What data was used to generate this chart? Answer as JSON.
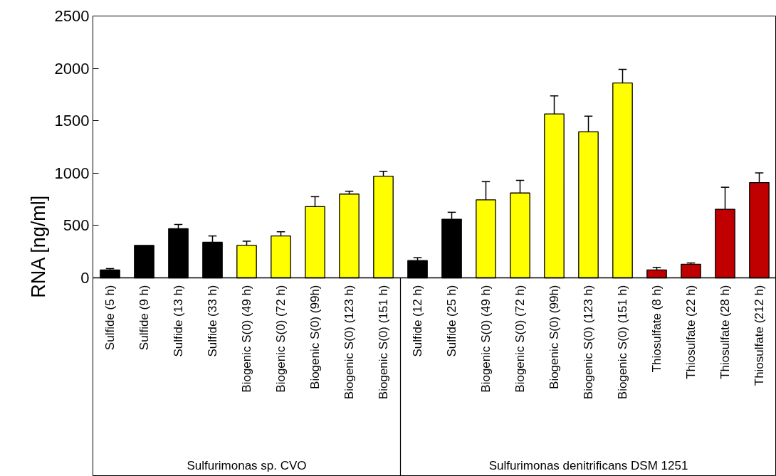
{
  "chart_data": {
    "type": "bar",
    "ylabel": "RNA [ng/ml]",
    "categories": [
      "Sulfide (5 h)",
      "Sulfide (9 h)",
      "Sulfide (13 h)",
      "Sulfide (33 h)",
      "Biogenic S(0) (49 h)",
      "Biogenic S(0) (72 h)",
      "Biogenic S(0) (99h)",
      "Biogenic S(0) (123 h)",
      "Biogenic S(0) (151 h)",
      "Sulfide (12 h)",
      "Sulfide (25 h)",
      "Biogenic S(0) (49 h)",
      "Biogenic S(0) (72 h)",
      "Biogenic S(0) (99h)",
      "Biogenic S(0) (123 h)",
      "Biogenic S(0) (151 h)",
      "Thiosulfate (8 h)",
      "Thiosulfate (22 h)",
      "Thiosulfate (28 h)",
      "Thiosulfate (212 h)"
    ],
    "values": [
      75,
      310,
      470,
      340,
      310,
      400,
      680,
      800,
      970,
      165,
      560,
      745,
      810,
      1565,
      1395,
      1860,
      75,
      130,
      655,
      910
    ],
    "errors": [
      13,
      null,
      40,
      60,
      40,
      40,
      95,
      27,
      48,
      28,
      66,
      173,
      120,
      172,
      148,
      130,
      25,
      12,
      210,
      92
    ],
    "colors": [
      "#000000",
      "#000000",
      "#000000",
      "#000000",
      "#ffff00",
      "#ffff00",
      "#ffff00",
      "#ffff00",
      "#ffff00",
      "#000000",
      "#000000",
      "#ffff00",
      "#ffff00",
      "#ffff00",
      "#ffff00",
      "#ffff00",
      "#c00000",
      "#c00000",
      "#c00000",
      "#c00000"
    ],
    "ylim": [
      0,
      2500
    ],
    "yticks": [
      0,
      500,
      1000,
      1500,
      2000,
      2500
    ],
    "grid": false,
    "annotations": [
      "Sulfurimonas sp. CVO",
      "Sulfurimonas denitrificans DSM 1251"
    ]
  }
}
